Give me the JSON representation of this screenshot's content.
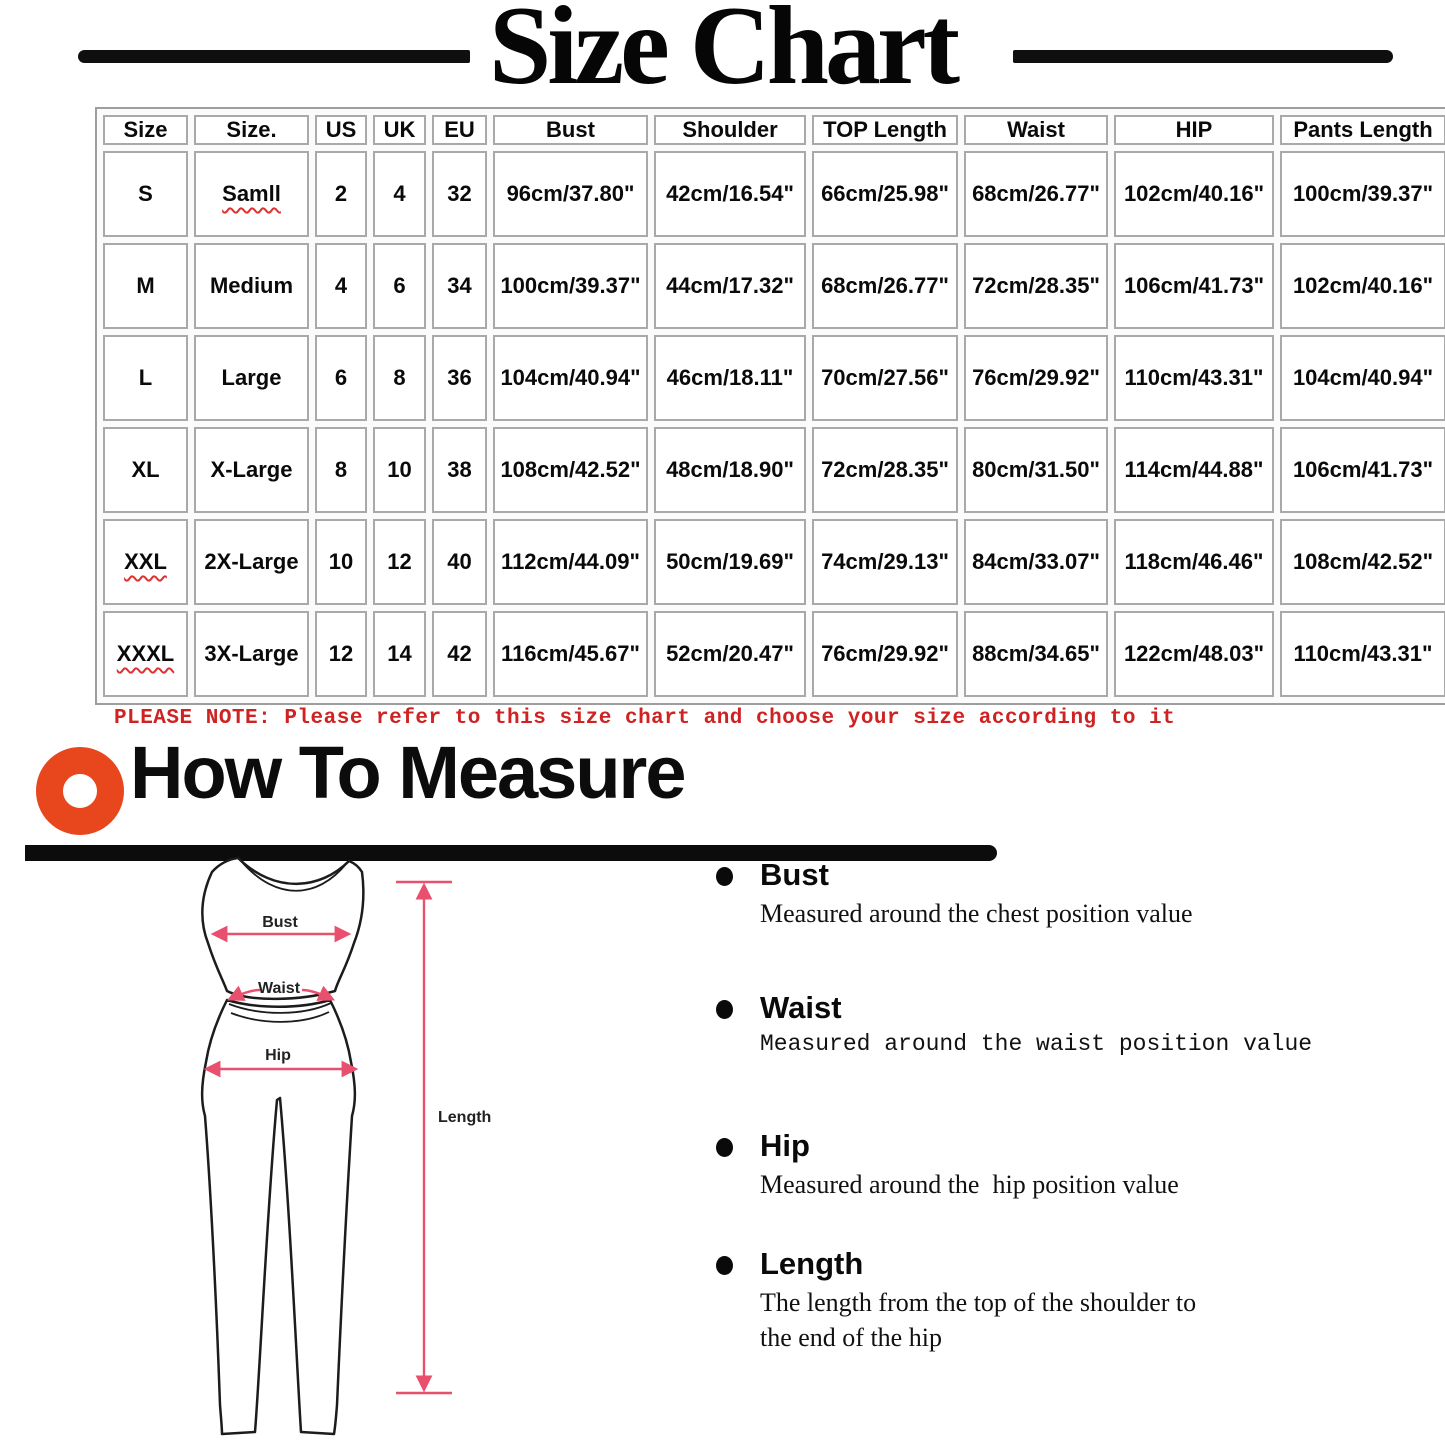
{
  "title": "Size Chart",
  "size_table": {
    "columns": [
      "Size",
      "Size.",
      "US",
      "UK",
      "EU",
      "Bust",
      "Shoulder",
      "TOP Length",
      "Waist",
      "HIP",
      "Pants Length"
    ],
    "header_squiggle_cols": [
      4
    ],
    "rows": [
      {
        "cells": [
          "S",
          "Samll",
          "2",
          "4",
          "32",
          "96cm/37.80\"",
          "42cm/16.54\"",
          "66cm/25.98\"",
          "68cm/26.77\"",
          "102cm/40.16\"",
          "100cm/39.37\""
        ],
        "squiggle_cols": [
          1
        ]
      },
      {
        "cells": [
          "M",
          "Medium",
          "4",
          "6",
          "34",
          "100cm/39.37\"",
          "44cm/17.32\"",
          "68cm/26.77\"",
          "72cm/28.35\"",
          "106cm/41.73\"",
          "102cm/40.16\""
        ],
        "squiggle_cols": []
      },
      {
        "cells": [
          "L",
          "Large",
          "6",
          "8",
          "36",
          "104cm/40.94\"",
          "46cm/18.11\"",
          "70cm/27.56\"",
          "76cm/29.92\"",
          "110cm/43.31\"",
          "104cm/40.94\""
        ],
        "squiggle_cols": []
      },
      {
        "cells": [
          "XL",
          "X-Large",
          "8",
          "10",
          "38",
          "108cm/42.52\"",
          "48cm/18.90\"",
          "72cm/28.35\"",
          "80cm/31.50\"",
          "114cm/44.88\"",
          "106cm/41.73\""
        ],
        "squiggle_cols": []
      },
      {
        "cells": [
          "XXL",
          "2X-Large",
          "10",
          "12",
          "40",
          "112cm/44.09\"",
          "50cm/19.69\"",
          "74cm/29.13\"",
          "84cm/33.07\"",
          "118cm/46.46\"",
          "108cm/42.52\""
        ],
        "squiggle_cols": [
          0
        ]
      },
      {
        "cells": [
          "XXXL",
          "3X-Large",
          "12",
          "14",
          "42",
          "116cm/45.67\"",
          "52cm/20.47\"",
          "76cm/29.92\"",
          "88cm/34.65\"",
          "122cm/48.03\"",
          "110cm/43.31\""
        ],
        "squiggle_cols": [
          0
        ]
      }
    ]
  },
  "note": "PLEASE NOTE: Please refer to this size chart and choose your size according to it",
  "how_to_measure": {
    "heading": "How To Measure",
    "items": [
      {
        "label": "Bust",
        "description": "Measured around the chest position value"
      },
      {
        "label": "Waist",
        "description": "Measured around the waist position value"
      },
      {
        "label": "Hip",
        "description": "Measured around the  hip position value"
      },
      {
        "label": "Length",
        "description": "The length from the top of the shoulder to\nthe end of the hip"
      }
    ]
  },
  "diagram": {
    "bust_label": "Bust",
    "waist_label": "Waist",
    "hip_label": "Hip",
    "length_label": "Length"
  },
  "colors": {
    "accent_orange": "#e8471d",
    "note_red": "#cf2323",
    "diagram_pink": "#e8506e",
    "squiggle_red": "#e03131",
    "ink_black": "#0c0c0c"
  }
}
